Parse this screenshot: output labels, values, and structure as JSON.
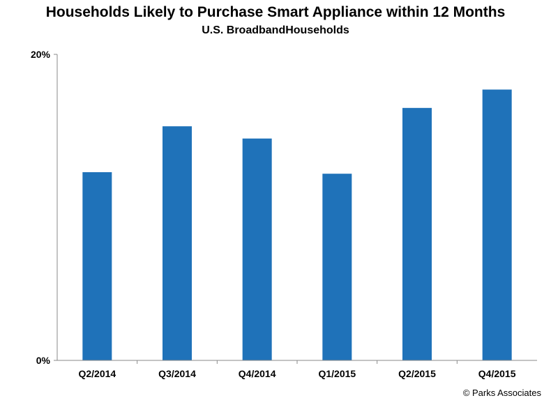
{
  "chart_data": {
    "type": "bar",
    "title": "Households Likely to Purchase Smart Appliance within 12 Months",
    "subtitle": "U.S. BroadbandHouseholds",
    "categories": [
      "Q2/2014",
      "Q3/2014",
      "Q4/2014",
      "Q1/2015",
      "Q2/2015",
      "Q4/2015"
    ],
    "series": [
      {
        "values": [
          12.3,
          15.3,
          14.5,
          12.2,
          16.5,
          17.7
        ]
      }
    ],
    "xlabel": "",
    "ylabel": "",
    "ylim": [
      0,
      20
    ],
    "y_ticks": [
      "0%",
      "20%"
    ],
    "grid": false,
    "bar_color": "#1f72b9"
  },
  "source": "© Parks Associates"
}
